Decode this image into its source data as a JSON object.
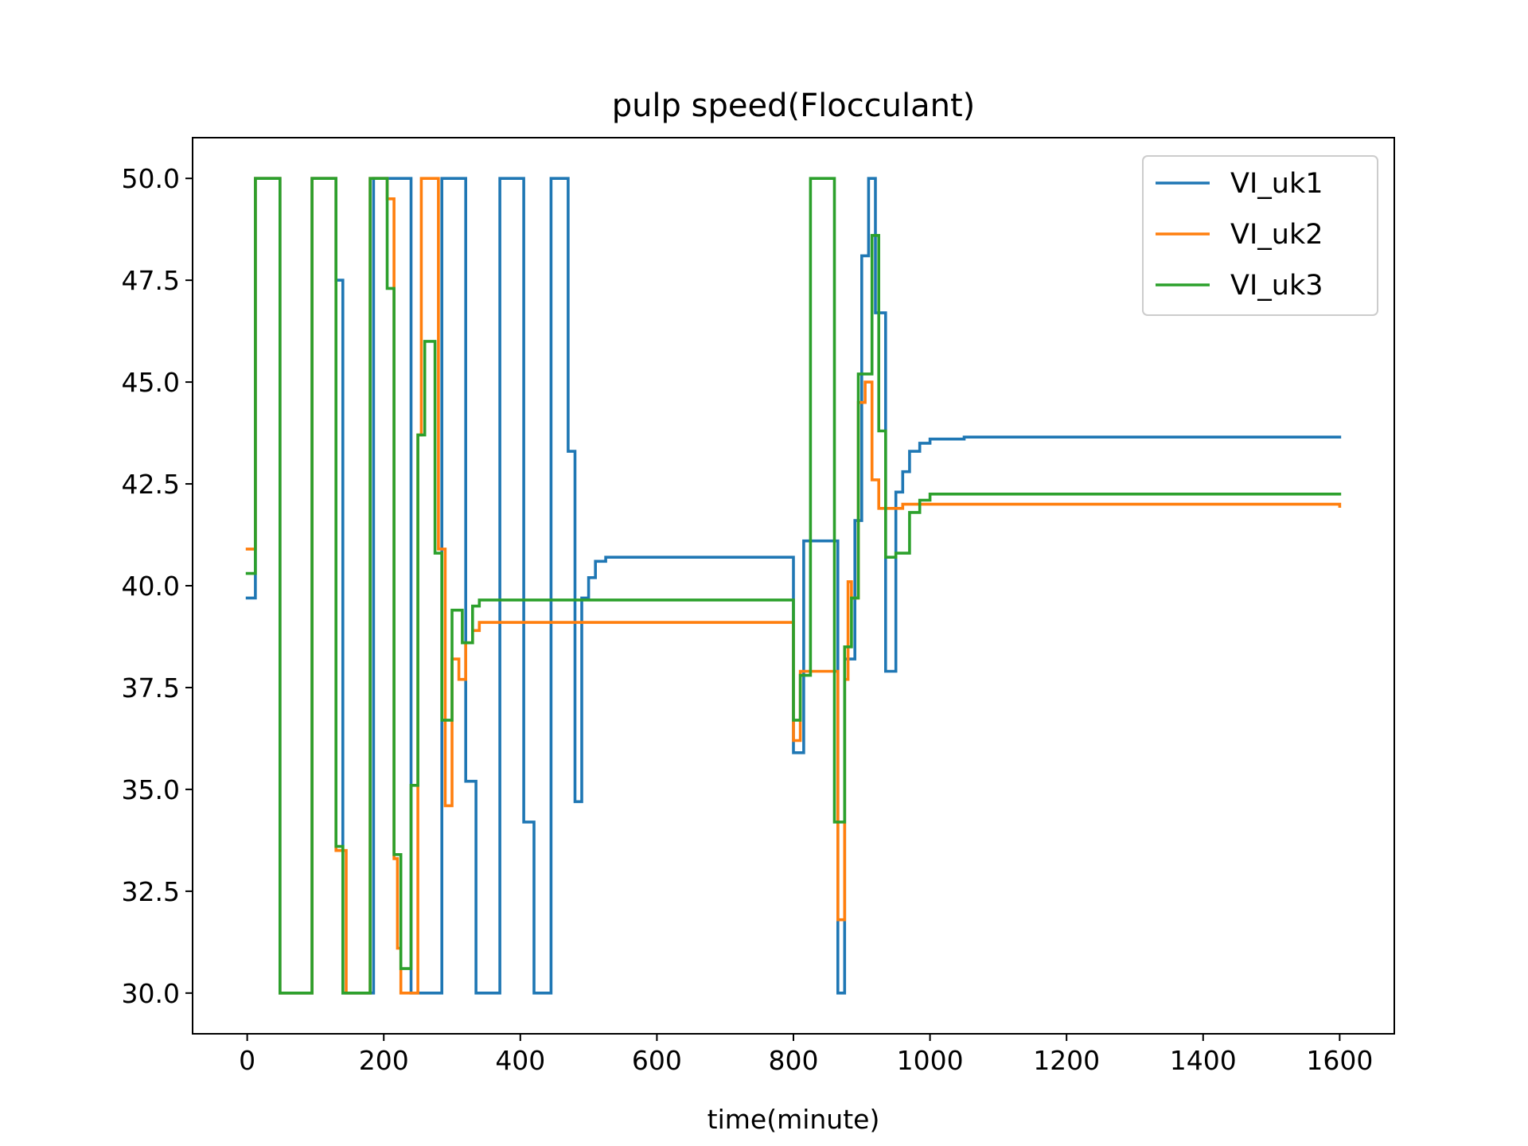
{
  "chart_data": {
    "type": "line",
    "title": "pulp speed(Flocculant)",
    "xlabel": "time(minute)",
    "ylabel": "",
    "xlim": [
      -80,
      1680
    ],
    "ylim": [
      29.0,
      51.0
    ],
    "xticks": [
      0,
      200,
      400,
      600,
      800,
      1000,
      1200,
      1400,
      1600
    ],
    "xtick_labels": [
      "0",
      "200",
      "400",
      "600",
      "800",
      "1000",
      "1200",
      "1400",
      "1600"
    ],
    "yticks": [
      30.0,
      32.5,
      35.0,
      37.5,
      40.0,
      42.5,
      45.0,
      47.5,
      50.0
    ],
    "ytick_labels": [
      "30.0",
      "32.5",
      "35.0",
      "37.5",
      "40.0",
      "42.5",
      "45.0",
      "47.5",
      "50.0"
    ],
    "grid": false,
    "legend_position": "top-right",
    "step": true,
    "series": [
      {
        "name": "VI_uk1",
        "color": "#1f77b4",
        "points": [
          [
            0,
            39.7
          ],
          [
            12,
            50
          ],
          [
            48,
            30
          ],
          [
            95,
            50
          ],
          [
            130,
            47.5
          ],
          [
            140,
            30
          ],
          [
            185,
            50
          ],
          [
            240,
            30
          ],
          [
            285,
            50
          ],
          [
            320,
            35.2
          ],
          [
            335,
            30
          ],
          [
            370,
            50
          ],
          [
            405,
            34.2
          ],
          [
            420,
            30
          ],
          [
            445,
            50
          ],
          [
            470,
            43.3
          ],
          [
            480,
            34.7
          ],
          [
            490,
            39.7
          ],
          [
            500,
            40.2
          ],
          [
            510,
            40.6
          ],
          [
            525,
            40.7
          ],
          [
            800,
            35.9
          ],
          [
            815,
            41.1
          ],
          [
            865,
            30
          ],
          [
            875,
            38.2
          ],
          [
            890,
            41.6
          ],
          [
            900,
            48.1
          ],
          [
            910,
            50
          ],
          [
            920,
            46.7
          ],
          [
            935,
            37.9
          ],
          [
            950,
            42.3
          ],
          [
            960,
            42.8
          ],
          [
            970,
            43.3
          ],
          [
            985,
            43.5
          ],
          [
            1000,
            43.6
          ],
          [
            1050,
            43.65
          ],
          [
            1600,
            43.65
          ]
        ]
      },
      {
        "name": "VI_uk2",
        "color": "#ff7f0e",
        "points": [
          [
            0,
            40.9
          ],
          [
            12,
            50
          ],
          [
            48,
            30
          ],
          [
            95,
            50
          ],
          [
            130,
            33.5
          ],
          [
            145,
            30
          ],
          [
            180,
            50
          ],
          [
            205,
            49.5
          ],
          [
            215,
            33.3
          ],
          [
            220,
            31.1
          ],
          [
            225,
            30
          ],
          [
            250,
            43.7
          ],
          [
            255,
            50
          ],
          [
            280,
            40.9
          ],
          [
            290,
            34.6
          ],
          [
            300,
            38.2
          ],
          [
            310,
            37.7
          ],
          [
            320,
            38.6
          ],
          [
            330,
            38.9
          ],
          [
            340,
            39.1
          ],
          [
            800,
            36.2
          ],
          [
            810,
            37.9
          ],
          [
            865,
            31.8
          ],
          [
            875,
            37.7
          ],
          [
            880,
            40.1
          ],
          [
            885,
            39.7
          ],
          [
            895,
            44.5
          ],
          [
            905,
            45.0
          ],
          [
            915,
            42.6
          ],
          [
            925,
            41.9
          ],
          [
            935,
            41.9
          ],
          [
            960,
            42.0
          ],
          [
            1600,
            41.95
          ]
        ]
      },
      {
        "name": "VI_uk3",
        "color": "#2ca02c",
        "points": [
          [
            0,
            40.3
          ],
          [
            12,
            50
          ],
          [
            48,
            30
          ],
          [
            95,
            50
          ],
          [
            130,
            33.6
          ],
          [
            140,
            30
          ],
          [
            180,
            50
          ],
          [
            205,
            47.3
          ],
          [
            215,
            33.4
          ],
          [
            225,
            30.6
          ],
          [
            240,
            35.1
          ],
          [
            250,
            43.7
          ],
          [
            260,
            46.0
          ],
          [
            275,
            40.8
          ],
          [
            285,
            36.7
          ],
          [
            300,
            39.4
          ],
          [
            315,
            38.6
          ],
          [
            330,
            39.5
          ],
          [
            340,
            39.65
          ],
          [
            800,
            36.7
          ],
          [
            810,
            37.8
          ],
          [
            825,
            50
          ],
          [
            860,
            34.2
          ],
          [
            875,
            38.5
          ],
          [
            885,
            39.7
          ],
          [
            895,
            45.2
          ],
          [
            915,
            48.6
          ],
          [
            925,
            43.8
          ],
          [
            935,
            40.7
          ],
          [
            950,
            40.8
          ],
          [
            970,
            41.8
          ],
          [
            985,
            42.1
          ],
          [
            1000,
            42.25
          ],
          [
            1600,
            42.25
          ]
        ]
      }
    ]
  }
}
